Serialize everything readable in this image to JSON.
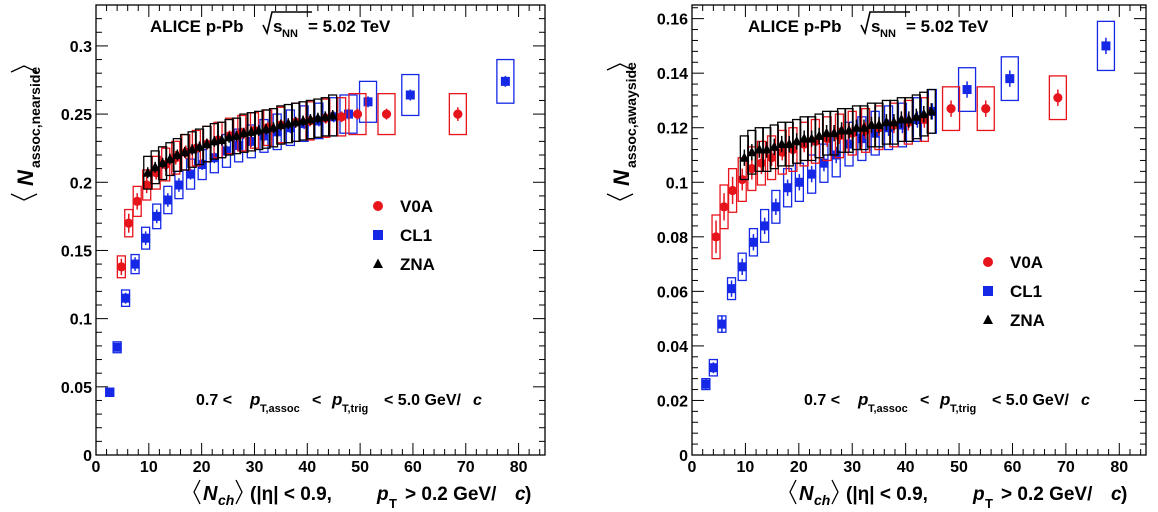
{
  "colors": {
    "V0A": "#e8141c",
    "CL1": "#1428e6",
    "ZNA": "#000000"
  },
  "chart_data": [
    {
      "type": "scatter",
      "title": "ALICE p-Pb",
      "energy_prefix": "s",
      "energy_sub": "NN",
      "energy_value": "= 5.02 TeV",
      "ylabel_main": "N",
      "ylabel_sub": "assoc,nearside",
      "xlabel_main": "N",
      "xlabel_sub": "ch",
      "xlabel_tail": "(|η| < 0.9,",
      "xlabel_pt": "p",
      "xlabel_pt_sub": "T",
      "xlabel_cut": "> 0.2 GeV/",
      "xlabel_c": "c",
      "xlabel_close": ")",
      "cut_prefix": "0.7 <",
      "cut_p1": "p",
      "cut_sub1": "T,assoc",
      "cut_mid": "<",
      "cut_p2": "p",
      "cut_sub2": "T,trig",
      "cut_suffix": "< 5.0 GeV/",
      "cut_c": "c",
      "xlim": [
        0,
        85
      ],
      "ylim": [
        0.0,
        0.33
      ],
      "xticks": [
        0,
        10,
        20,
        30,
        40,
        50,
        60,
        70,
        80
      ],
      "yticks": [
        "0",
        "0.05",
        "0.1",
        "0.15",
        "0.2",
        "0.25",
        "0.3"
      ],
      "ytick_values": [
        0,
        0.05,
        0.1,
        0.15,
        0.2,
        0.25,
        0.3
      ],
      "legend_position": "right-middle",
      "series": [
        {
          "name": "V0A",
          "marker": "circle",
          "x": [
            4.8,
            6.2,
            7.8,
            9.6,
            11.4,
            13.2,
            15.1,
            17.0,
            19.0,
            21.0,
            23.1,
            25.3,
            27.6,
            30.0,
            32.5,
            35.0,
            37.8,
            40.5,
            43.5,
            46.5,
            49.5,
            55.0,
            68.5
          ],
          "y": [
            0.138,
            0.17,
            0.186,
            0.198,
            0.207,
            0.213,
            0.218,
            0.222,
            0.225,
            0.228,
            0.231,
            0.234,
            0.236,
            0.238,
            0.24,
            0.242,
            0.244,
            0.245,
            0.247,
            0.248,
            0.25,
            0.25,
            0.25
          ],
          "sys": [
            0.008,
            0.01,
            0.011,
            0.011,
            0.012,
            0.012,
            0.012,
            0.013,
            0.013,
            0.013,
            0.013,
            0.013,
            0.013,
            0.013,
            0.013,
            0.013,
            0.014,
            0.014,
            0.014,
            0.014,
            0.015,
            0.015,
            0.015
          ],
          "err": [
            0.006,
            0.007,
            0.006,
            0.006,
            0.005,
            0.005,
            0.005,
            0.005,
            0.004,
            0.004,
            0.004,
            0.004,
            0.004,
            0.004,
            0.004,
            0.004,
            0.004,
            0.004,
            0.004,
            0.004,
            0.004,
            0.004,
            0.005
          ]
        },
        {
          "name": "CL1",
          "marker": "square",
          "x": [
            2.6,
            4.0,
            5.6,
            7.4,
            9.4,
            11.5,
            13.6,
            15.7,
            17.9,
            20.1,
            22.4,
            24.7,
            27.0,
            29.4,
            31.8,
            34.3,
            36.8,
            39.4,
            42.2,
            45.0,
            47.8,
            51.5,
            59.5,
            77.5
          ],
          "y": [
            0.046,
            0.079,
            0.115,
            0.14,
            0.159,
            0.175,
            0.187,
            0.198,
            0.206,
            0.213,
            0.218,
            0.223,
            0.227,
            0.23,
            0.234,
            0.237,
            0.24,
            0.243,
            0.245,
            0.248,
            0.25,
            0.259,
            0.264,
            0.274
          ],
          "sys": [
            0.003,
            0.004,
            0.006,
            0.007,
            0.008,
            0.009,
            0.01,
            0.01,
            0.011,
            0.011,
            0.011,
            0.012,
            0.012,
            0.012,
            0.012,
            0.013,
            0.013,
            0.013,
            0.013,
            0.014,
            0.014,
            0.015,
            0.015,
            0.016
          ],
          "err": [
            0.002,
            0.003,
            0.004,
            0.005,
            0.005,
            0.005,
            0.005,
            0.005,
            0.004,
            0.004,
            0.004,
            0.004,
            0.004,
            0.004,
            0.004,
            0.004,
            0.004,
            0.004,
            0.004,
            0.004,
            0.004,
            0.004,
            0.004,
            0.004
          ]
        },
        {
          "name": "ZNA",
          "marker": "triangle",
          "x": [
            9.8,
            11.2,
            12.6,
            14.0,
            15.4,
            16.8,
            18.2,
            19.6,
            21.0,
            22.4,
            23.8,
            25.2,
            26.6,
            28.0,
            29.4,
            30.8,
            32.2,
            33.6,
            35.0,
            36.4,
            37.8,
            39.2,
            40.6,
            42.0,
            43.4,
            44.8
          ],
          "y": [
            0.207,
            0.211,
            0.214,
            0.217,
            0.22,
            0.222,
            0.224,
            0.226,
            0.228,
            0.23,
            0.231,
            0.233,
            0.234,
            0.236,
            0.237,
            0.238,
            0.239,
            0.24,
            0.242,
            0.243,
            0.244,
            0.245,
            0.246,
            0.247,
            0.248,
            0.249
          ],
          "sys": [
            0.012,
            0.012,
            0.012,
            0.012,
            0.012,
            0.013,
            0.013,
            0.013,
            0.013,
            0.013,
            0.013,
            0.013,
            0.013,
            0.014,
            0.014,
            0.014,
            0.014,
            0.014,
            0.014,
            0.014,
            0.014,
            0.014,
            0.014,
            0.014,
            0.014,
            0.015
          ],
          "err": [
            0.004,
            0.004,
            0.004,
            0.004,
            0.004,
            0.004,
            0.004,
            0.004,
            0.004,
            0.004,
            0.004,
            0.004,
            0.004,
            0.004,
            0.004,
            0.004,
            0.004,
            0.004,
            0.004,
            0.004,
            0.004,
            0.004,
            0.004,
            0.004,
            0.004,
            0.004
          ]
        }
      ]
    },
    {
      "type": "scatter",
      "title": "ALICE p-Pb",
      "energy_prefix": "s",
      "energy_sub": "NN",
      "energy_value": "= 5.02 TeV",
      "ylabel_main": "N",
      "ylabel_sub": "assoc,awayside",
      "xlabel_main": "N",
      "xlabel_sub": "ch",
      "xlabel_tail": "(|η| < 0.9,",
      "xlabel_pt": "p",
      "xlabel_pt_sub": "T",
      "xlabel_cut": "> 0.2 GeV/",
      "xlabel_c": "c",
      "xlabel_close": ")",
      "cut_prefix": "0.7 <",
      "cut_p1": "p",
      "cut_sub1": "T,assoc",
      "cut_mid": "<",
      "cut_p2": "p",
      "cut_sub2": "T,trig",
      "cut_suffix": "< 5.0 GeV/",
      "cut_c": "c",
      "xlim": [
        0,
        85
      ],
      "ylim": [
        0.0,
        0.165
      ],
      "xticks": [
        0,
        10,
        20,
        30,
        40,
        50,
        60,
        70,
        80
      ],
      "yticks": [
        "0",
        "0.02",
        "0.04",
        "0.06",
        "0.08",
        "0.1",
        "0.12",
        "0.14",
        "0.16"
      ],
      "ytick_values": [
        0,
        0.02,
        0.04,
        0.06,
        0.08,
        0.1,
        0.12,
        0.14,
        0.16
      ],
      "legend_position": "right-bottom",
      "series": [
        {
          "name": "V0A",
          "marker": "circle",
          "x": [
            4.5,
            6.0,
            7.6,
            9.4,
            11.2,
            13.0,
            14.9,
            16.9,
            18.9,
            21.0,
            23.1,
            25.3,
            27.6,
            30.0,
            32.5,
            35.0,
            37.8,
            40.5,
            43.5,
            48.5,
            55.0,
            68.5
          ],
          "y": [
            0.08,
            0.091,
            0.097,
            0.101,
            0.105,
            0.107,
            0.109,
            0.111,
            0.112,
            0.114,
            0.115,
            0.116,
            0.117,
            0.118,
            0.119,
            0.12,
            0.121,
            0.122,
            0.123,
            0.127,
            0.127,
            0.131
          ],
          "sys": [
            0.008,
            0.008,
            0.008,
            0.008,
            0.008,
            0.008,
            0.008,
            0.008,
            0.008,
            0.008,
            0.008,
            0.008,
            0.008,
            0.008,
            0.008,
            0.008,
            0.008,
            0.008,
            0.008,
            0.008,
            0.008,
            0.008
          ],
          "err": [
            0.006,
            0.005,
            0.005,
            0.004,
            0.004,
            0.004,
            0.003,
            0.003,
            0.003,
            0.003,
            0.003,
            0.003,
            0.003,
            0.003,
            0.003,
            0.003,
            0.003,
            0.003,
            0.003,
            0.003,
            0.003,
            0.003
          ]
        },
        {
          "name": "CL1",
          "marker": "square",
          "x": [
            2.6,
            4.0,
            5.6,
            7.4,
            9.4,
            11.5,
            13.6,
            15.7,
            17.9,
            20.1,
            22.4,
            24.7,
            27.0,
            29.4,
            31.8,
            34.3,
            36.8,
            39.4,
            42.2,
            45.0,
            51.5,
            59.5,
            77.5
          ],
          "y": [
            0.026,
            0.032,
            0.048,
            0.061,
            0.069,
            0.078,
            0.084,
            0.091,
            0.098,
            0.1,
            0.103,
            0.107,
            0.11,
            0.114,
            0.116,
            0.118,
            0.12,
            0.121,
            0.123,
            0.126,
            0.134,
            0.138,
            0.15
          ],
          "sys": [
            0.002,
            0.003,
            0.003,
            0.004,
            0.005,
            0.005,
            0.006,
            0.006,
            0.007,
            0.007,
            0.007,
            0.007,
            0.008,
            0.008,
            0.008,
            0.008,
            0.008,
            0.008,
            0.008,
            0.008,
            0.008,
            0.008,
            0.009
          ],
          "err": [
            0.002,
            0.002,
            0.003,
            0.003,
            0.003,
            0.003,
            0.003,
            0.003,
            0.003,
            0.003,
            0.003,
            0.003,
            0.003,
            0.003,
            0.003,
            0.003,
            0.003,
            0.003,
            0.003,
            0.003,
            0.003,
            0.003,
            0.003
          ]
        },
        {
          "name": "ZNA",
          "marker": "triangle",
          "x": [
            9.8,
            11.2,
            12.6,
            14.0,
            15.4,
            16.8,
            18.2,
            19.6,
            21.0,
            22.4,
            23.8,
            25.2,
            26.6,
            28.0,
            29.4,
            30.8,
            32.2,
            33.6,
            35.0,
            36.4,
            37.8,
            39.2,
            40.6,
            42.0,
            43.4,
            44.8
          ],
          "y": [
            0.109,
            0.111,
            0.112,
            0.112,
            0.113,
            0.114,
            0.114,
            0.115,
            0.116,
            0.116,
            0.117,
            0.118,
            0.118,
            0.119,
            0.119,
            0.12,
            0.12,
            0.121,
            0.121,
            0.122,
            0.122,
            0.123,
            0.123,
            0.124,
            0.125,
            0.126
          ],
          "sys": [
            0.008,
            0.008,
            0.008,
            0.008,
            0.008,
            0.008,
            0.008,
            0.008,
            0.008,
            0.008,
            0.008,
            0.008,
            0.008,
            0.008,
            0.008,
            0.008,
            0.008,
            0.008,
            0.008,
            0.008,
            0.008,
            0.008,
            0.008,
            0.008,
            0.008,
            0.008
          ],
          "err": [
            0.003,
            0.003,
            0.003,
            0.003,
            0.003,
            0.003,
            0.003,
            0.003,
            0.003,
            0.003,
            0.003,
            0.003,
            0.003,
            0.003,
            0.003,
            0.003,
            0.003,
            0.003,
            0.003,
            0.003,
            0.003,
            0.003,
            0.003,
            0.003,
            0.003,
            0.003
          ]
        }
      ]
    }
  ]
}
